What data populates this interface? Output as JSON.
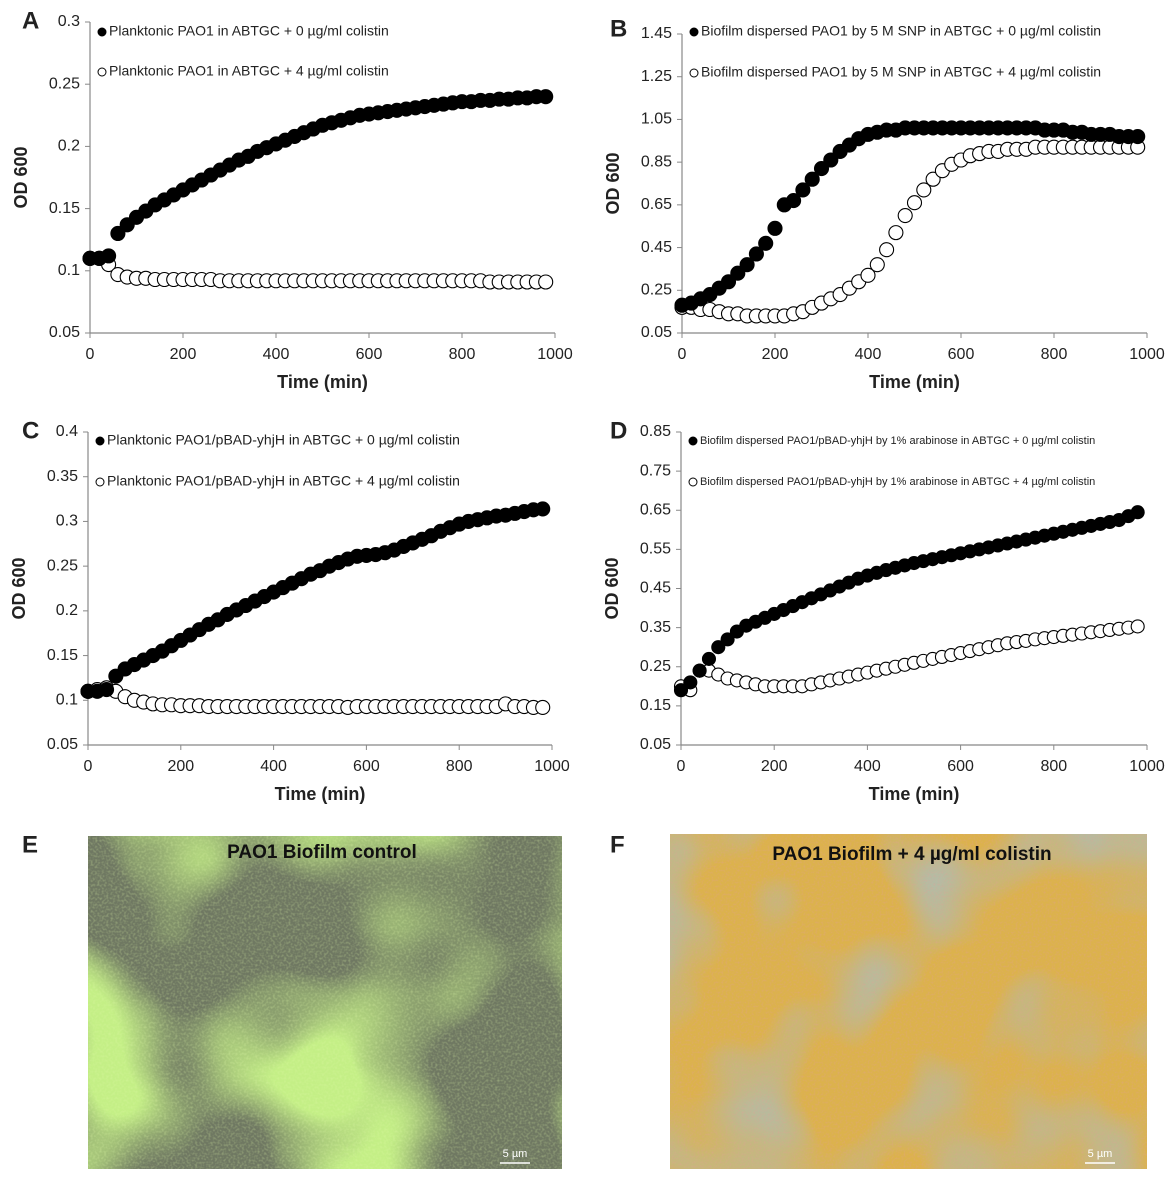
{
  "chart_data": [
    {
      "type": "scatter",
      "panel": "A",
      "xlabel": "Time (min)",
      "ylabel": "OD 600",
      "xlim": [
        0,
        1000
      ],
      "xticks": [
        0,
        200,
        400,
        600,
        800,
        1000
      ],
      "ylim": [
        0.05,
        0.3
      ],
      "yticks": [
        0.05,
        0.1,
        0.15,
        0.2,
        0.25,
        0.3
      ],
      "x": [
        0,
        20,
        40,
        60,
        80,
        100,
        120,
        140,
        160,
        180,
        200,
        220,
        240,
        260,
        280,
        300,
        320,
        340,
        360,
        380,
        400,
        420,
        440,
        460,
        480,
        500,
        520,
        540,
        560,
        580,
        600,
        620,
        640,
        660,
        680,
        700,
        720,
        740,
        760,
        780,
        800,
        820,
        840,
        860,
        880,
        900,
        920,
        940,
        960,
        980
      ],
      "series": [
        {
          "name": "Planktonic PAO1 in ABTGC + 0 µg/ml colistin",
          "marker": "filled",
          "color": "#000000",
          "values": [
            0.11,
            0.11,
            0.112,
            0.13,
            0.137,
            0.143,
            0.148,
            0.153,
            0.157,
            0.161,
            0.165,
            0.169,
            0.173,
            0.177,
            0.181,
            0.185,
            0.189,
            0.192,
            0.196,
            0.199,
            0.202,
            0.205,
            0.208,
            0.211,
            0.214,
            0.217,
            0.219,
            0.221,
            0.223,
            0.225,
            0.226,
            0.227,
            0.228,
            0.229,
            0.23,
            0.231,
            0.232,
            0.233,
            0.234,
            0.235,
            0.236,
            0.236,
            0.237,
            0.237,
            0.238,
            0.238,
            0.239,
            0.239,
            0.24,
            0.24
          ]
        },
        {
          "name": "Planktonic PAO1 in ABTGC + 4 µg/ml colistin",
          "marker": "open",
          "color": "#000000",
          "values": [
            0.11,
            0.11,
            0.105,
            0.097,
            0.095,
            0.094,
            0.094,
            0.093,
            0.093,
            0.093,
            0.093,
            0.093,
            0.093,
            0.093,
            0.092,
            0.092,
            0.092,
            0.092,
            0.092,
            0.092,
            0.092,
            0.092,
            0.092,
            0.092,
            0.092,
            0.092,
            0.092,
            0.092,
            0.092,
            0.092,
            0.092,
            0.092,
            0.092,
            0.092,
            0.092,
            0.092,
            0.092,
            0.092,
            0.092,
            0.092,
            0.092,
            0.092,
            0.092,
            0.091,
            0.091,
            0.091,
            0.091,
            0.091,
            0.091,
            0.091
          ]
        }
      ]
    },
    {
      "type": "scatter",
      "panel": "B",
      "xlabel": "Time (min)",
      "ylabel": "OD 600",
      "xlim": [
        0,
        1000
      ],
      "xticks": [
        0,
        200,
        400,
        600,
        800,
        1000
      ],
      "ylim": [
        0.05,
        1.45
      ],
      "yticks": [
        0.05,
        0.25,
        0.45,
        0.65,
        0.85,
        1.05,
        1.25,
        1.45
      ],
      "x": [
        0,
        20,
        40,
        60,
        80,
        100,
        120,
        140,
        160,
        180,
        200,
        220,
        240,
        260,
        280,
        300,
        320,
        340,
        360,
        380,
        400,
        420,
        440,
        460,
        480,
        500,
        520,
        540,
        560,
        580,
        600,
        620,
        640,
        660,
        680,
        700,
        720,
        740,
        760,
        780,
        800,
        820,
        840,
        860,
        880,
        900,
        920,
        940,
        960,
        980
      ],
      "series": [
        {
          "name": "Biofilm dispersed PAO1 by 5 M SNP in ABTGC + 0 µg/ml colistin",
          "marker": "filled",
          "color": "#000000",
          "values": [
            0.18,
            0.19,
            0.21,
            0.23,
            0.26,
            0.29,
            0.33,
            0.37,
            0.42,
            0.47,
            0.54,
            0.65,
            0.67,
            0.72,
            0.77,
            0.82,
            0.86,
            0.9,
            0.93,
            0.96,
            0.98,
            0.99,
            1.0,
            1.0,
            1.01,
            1.01,
            1.01,
            1.01,
            1.01,
            1.01,
            1.01,
            1.01,
            1.01,
            1.01,
            1.01,
            1.01,
            1.01,
            1.01,
            1.01,
            1.0,
            1.0,
            1.0,
            0.99,
            0.99,
            0.98,
            0.98,
            0.98,
            0.97,
            0.97,
            0.97
          ]
        },
        {
          "name": "Biofilm dispersed PAO1 by 5 M SNP in ABTGC + 4 µg/ml colistin",
          "marker": "open",
          "color": "#000000",
          "values": [
            0.17,
            0.17,
            0.16,
            0.16,
            0.15,
            0.14,
            0.14,
            0.13,
            0.13,
            0.13,
            0.13,
            0.13,
            0.14,
            0.15,
            0.17,
            0.19,
            0.21,
            0.23,
            0.26,
            0.29,
            0.32,
            0.37,
            0.44,
            0.52,
            0.6,
            0.66,
            0.72,
            0.77,
            0.81,
            0.84,
            0.86,
            0.88,
            0.89,
            0.9,
            0.9,
            0.91,
            0.91,
            0.91,
            0.92,
            0.92,
            0.92,
            0.92,
            0.92,
            0.92,
            0.92,
            0.92,
            0.92,
            0.92,
            0.92,
            0.92
          ]
        }
      ]
    },
    {
      "type": "scatter",
      "panel": "C",
      "xlabel": "Time (min)",
      "ylabel": "OD 600",
      "xlim": [
        0,
        1000
      ],
      "xticks": [
        0,
        200,
        400,
        600,
        800,
        1000
      ],
      "ylim": [
        0.05,
        0.4
      ],
      "yticks": [
        0.05,
        0.1,
        0.15,
        0.2,
        0.25,
        0.3,
        0.35,
        0.4
      ],
      "x": [
        0,
        20,
        40,
        60,
        80,
        100,
        120,
        140,
        160,
        180,
        200,
        220,
        240,
        260,
        280,
        300,
        320,
        340,
        360,
        380,
        400,
        420,
        440,
        460,
        480,
        500,
        520,
        540,
        560,
        580,
        600,
        620,
        640,
        660,
        680,
        700,
        720,
        740,
        760,
        780,
        800,
        820,
        840,
        860,
        880,
        900,
        920,
        940,
        960,
        980
      ],
      "series": [
        {
          "name": "Planktonic PAO1/pBAD-yhjH in ABTGC + 0 µg/ml colistin",
          "marker": "filled",
          "color": "#000000",
          "values": [
            0.11,
            0.11,
            0.112,
            0.127,
            0.135,
            0.14,
            0.145,
            0.15,
            0.155,
            0.161,
            0.167,
            0.173,
            0.179,
            0.185,
            0.19,
            0.196,
            0.201,
            0.206,
            0.211,
            0.216,
            0.221,
            0.226,
            0.231,
            0.236,
            0.241,
            0.245,
            0.25,
            0.254,
            0.258,
            0.261,
            0.262,
            0.263,
            0.265,
            0.268,
            0.272,
            0.276,
            0.28,
            0.284,
            0.289,
            0.293,
            0.297,
            0.3,
            0.302,
            0.304,
            0.306,
            0.307,
            0.309,
            0.311,
            0.313,
            0.314
          ]
        },
        {
          "name": "Planktonic PAO1/pBAD-yhjH in ABTGC + 4 µg/ml colistin",
          "marker": "open",
          "color": "#000000",
          "values": [
            0.11,
            0.112,
            0.114,
            0.11,
            0.104,
            0.1,
            0.098,
            0.096,
            0.095,
            0.095,
            0.094,
            0.094,
            0.094,
            0.093,
            0.093,
            0.093,
            0.093,
            0.093,
            0.093,
            0.093,
            0.093,
            0.093,
            0.093,
            0.093,
            0.093,
            0.093,
            0.093,
            0.093,
            0.092,
            0.093,
            0.093,
            0.093,
            0.093,
            0.093,
            0.093,
            0.093,
            0.093,
            0.093,
            0.093,
            0.093,
            0.093,
            0.093,
            0.093,
            0.093,
            0.093,
            0.096,
            0.093,
            0.093,
            0.092,
            0.092
          ]
        }
      ]
    },
    {
      "type": "scatter",
      "panel": "D",
      "xlabel": "Time (min)",
      "ylabel": "OD 600",
      "xlim": [
        0,
        1000
      ],
      "xticks": [
        0,
        200,
        400,
        600,
        800,
        1000
      ],
      "ylim": [
        0.05,
        0.85
      ],
      "yticks": [
        0.05,
        0.15,
        0.25,
        0.35,
        0.45,
        0.55,
        0.65,
        0.75,
        0.85
      ],
      "x": [
        0,
        20,
        40,
        60,
        80,
        100,
        120,
        140,
        160,
        180,
        200,
        220,
        240,
        260,
        280,
        300,
        320,
        340,
        360,
        380,
        400,
        420,
        440,
        460,
        480,
        500,
        520,
        540,
        560,
        580,
        600,
        620,
        640,
        660,
        680,
        700,
        720,
        740,
        760,
        780,
        800,
        820,
        840,
        860,
        880,
        900,
        920,
        940,
        960,
        980
      ],
      "series": [
        {
          "name": "Biofilm dispersed PAO1/pBAD-yhjH by 1% arabinose in ABTGC + 0 µg/ml colistin",
          "marker": "filled",
          "color": "#000000",
          "values": [
            0.19,
            0.21,
            0.24,
            0.27,
            0.3,
            0.32,
            0.34,
            0.355,
            0.365,
            0.375,
            0.385,
            0.395,
            0.405,
            0.415,
            0.425,
            0.435,
            0.445,
            0.455,
            0.465,
            0.475,
            0.483,
            0.49,
            0.497,
            0.503,
            0.509,
            0.515,
            0.52,
            0.525,
            0.53,
            0.535,
            0.54,
            0.545,
            0.55,
            0.555,
            0.56,
            0.565,
            0.57,
            0.575,
            0.58,
            0.585,
            0.59,
            0.595,
            0.6,
            0.605,
            0.61,
            0.615,
            0.62,
            0.625,
            0.635,
            0.645
          ]
        },
        {
          "name": "Biofilm dispersed PAO1/pBAD-yhjH by 1% arabinose in ABTGC + 4 µg/ml colistin",
          "marker": "open",
          "color": "#000000",
          "values": [
            0.2,
            0.19,
            0.24,
            0.24,
            0.23,
            0.22,
            0.215,
            0.21,
            0.205,
            0.2,
            0.2,
            0.2,
            0.2,
            0.2,
            0.205,
            0.21,
            0.215,
            0.22,
            0.225,
            0.23,
            0.235,
            0.24,
            0.245,
            0.25,
            0.255,
            0.26,
            0.265,
            0.27,
            0.275,
            0.28,
            0.285,
            0.29,
            0.295,
            0.3,
            0.305,
            0.31,
            0.313,
            0.316,
            0.32,
            0.323,
            0.326,
            0.329,
            0.332,
            0.335,
            0.338,
            0.341,
            0.344,
            0.347,
            0.35,
            0.353
          ]
        }
      ]
    }
  ],
  "images": [
    {
      "panel": "E",
      "title": "PAO1 Biofilm control",
      "scale_label": "5 µm"
    },
    {
      "panel": "F",
      "title": "PAO1 Biofilm + 4 µg/ml colistin",
      "scale_label": "5 µm"
    }
  ]
}
